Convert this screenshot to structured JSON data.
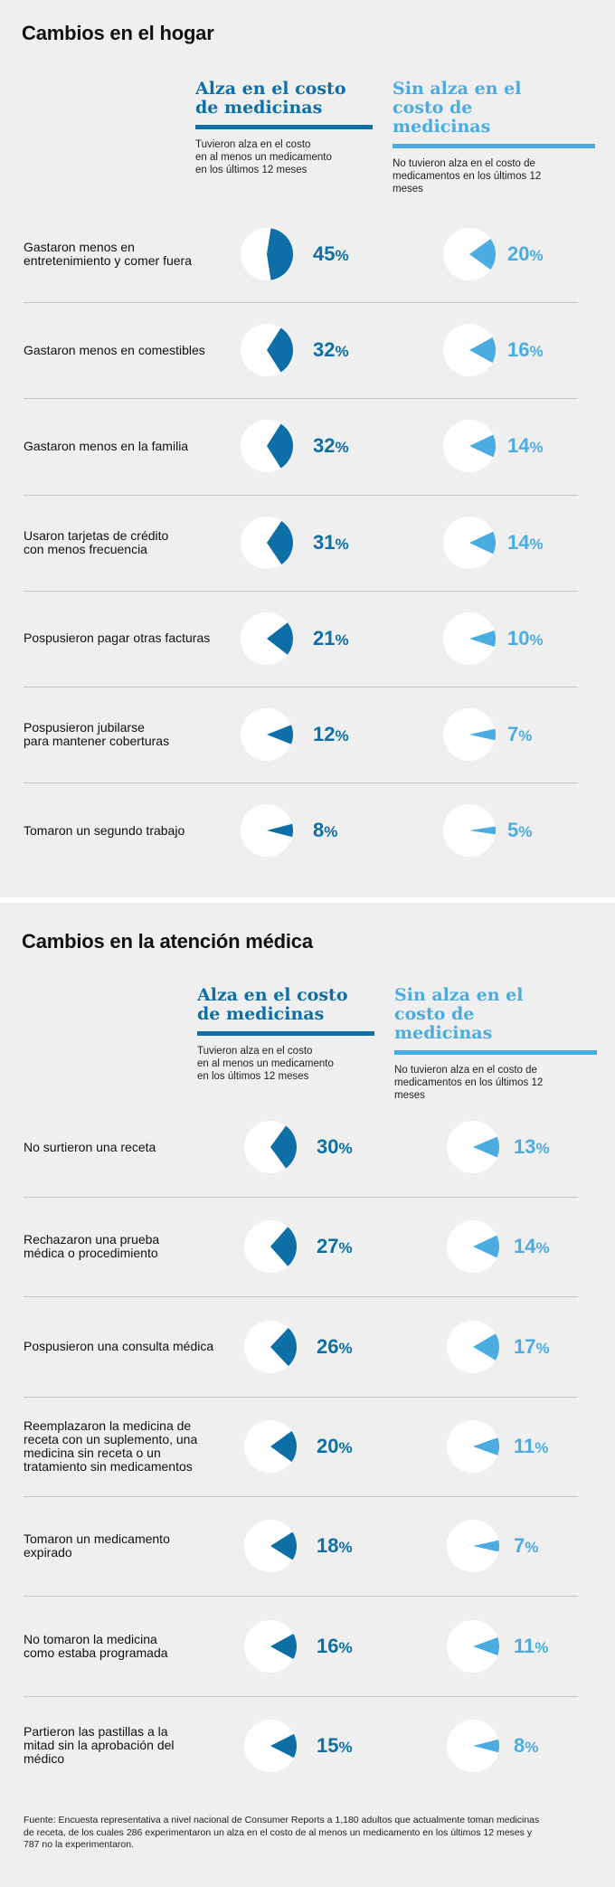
{
  "colors": {
    "dark": "#0d6fa6",
    "light": "#4aace0",
    "pie_bg": "#ffffff"
  },
  "sections": [
    {
      "title": "Cambios en el hogar",
      "col_a": {
        "title": "Alza en el costo\nde medicinas",
        "subtitle": "Tuvieron alza en el costo\nen al menos un medicamento\nen los últimos 12 meses"
      },
      "col_b": {
        "title": "Sin alza en el\ncosto de medicinas",
        "subtitle": "No tuvieron alza en el costo de\nmedicamentos en los últimos 12 meses"
      }
    },
    {
      "title": "Cambios en la atención médica",
      "col_a": {
        "title": "Alza en el costo\nde medicinas",
        "subtitle": "Tuvieron alza en el costo\nen al menos un medicamento\nen los últimos 12 meses"
      },
      "col_b": {
        "title": "Sin alza en el\ncosto de medicinas",
        "subtitle": "No tuvieron alza en el costo de\nmedicamentos en los últimos 12 meses"
      }
    }
  ],
  "chart_data": [
    {
      "type": "pie",
      "title": "Cambios en el hogar",
      "series": [
        {
          "name": "Alza en el costo de medicinas"
        },
        {
          "name": "Sin alza en el costo de medicinas"
        }
      ],
      "rows": [
        {
          "label": "Gastaron menos en\nentretenimiento y comer fuera",
          "a": 45,
          "b": 20
        },
        {
          "label": "Gastaron menos en comestibles",
          "a": 32,
          "b": 16
        },
        {
          "label": "Gastaron menos en la familia",
          "a": 32,
          "b": 14
        },
        {
          "label": "Usaron tarjetas de crédito\ncon menos frecuencia",
          "a": 31,
          "b": 14
        },
        {
          "label": "Pospusieron pagar otras facturas",
          "a": 21,
          "b": 10
        },
        {
          "label": "Pospusieron jubilarse\npara mantener coberturas",
          "a": 12,
          "b": 7
        },
        {
          "label": "Tomaron un segundo trabajo",
          "a": 8,
          "b": 5
        }
      ],
      "unit": "%"
    },
    {
      "type": "pie",
      "title": "Cambios en la atención médica",
      "series": [
        {
          "name": "Alza en el costo de medicinas"
        },
        {
          "name": "Sin alza en el costo de medicinas"
        }
      ],
      "rows": [
        {
          "label": "No surtieron una receta",
          "a": 30,
          "b": 13
        },
        {
          "label": "Rechazaron una prueba\nmédica o procedimiento",
          "a": 27,
          "b": 14
        },
        {
          "label": "Pospusieron una consulta médica",
          "a": 26,
          "b": 17
        },
        {
          "label": "Reemplazaron la medicina de\nreceta con un suplemento, una\nmedicina sin receta o un\ntratamiento sin medicamentos",
          "a": 20,
          "b": 11
        },
        {
          "label": "Tomaron un medicamento\nexpirado",
          "a": 18,
          "b": 7
        },
        {
          "label": "No tomaron la medicina\ncomo estaba programada",
          "a": 16,
          "b": 11
        },
        {
          "label": "Partieron las pastillas a la\nmitad sin la aprobación del\nmédico",
          "a": 15,
          "b": 8
        }
      ],
      "unit": "%"
    }
  ],
  "source": "Fuente: Encuesta representativa a nivel nacional de Consumer Reports a 1,180 adultos que actualmente toman medicinas de receta, de los cuales 286 experimentaron un alza en el costo de al menos un medicamento en los últimos 12 meses y 787 no la experimentaron."
}
